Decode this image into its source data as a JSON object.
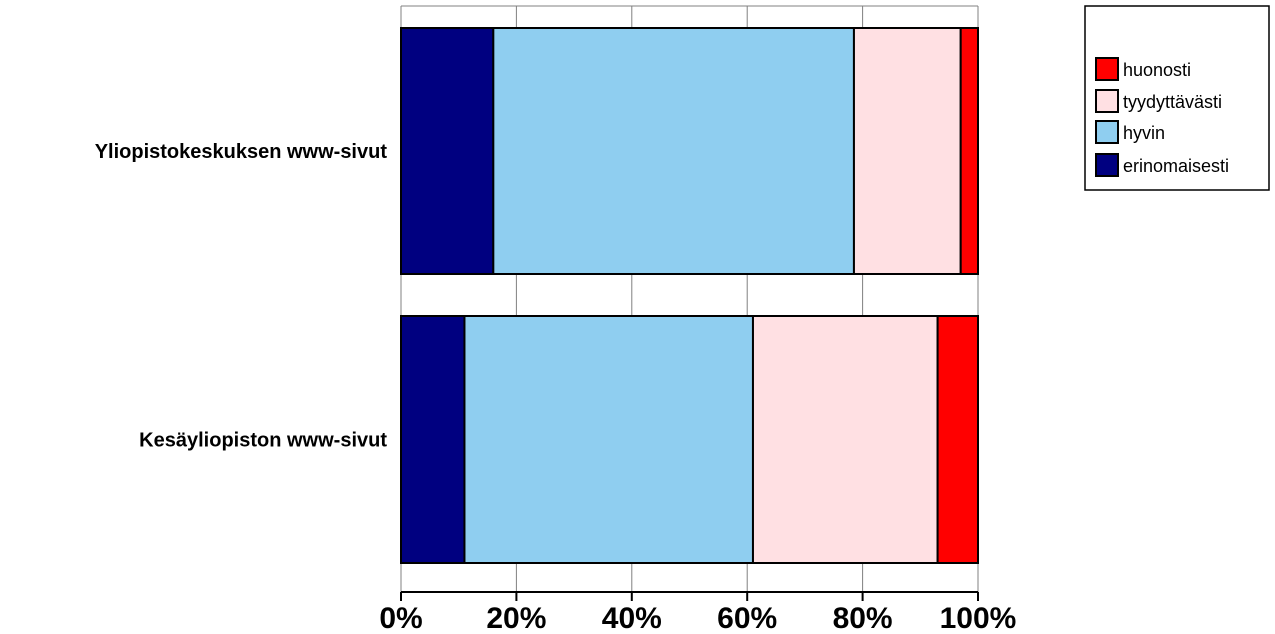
{
  "chart_data": {
    "type": "bar",
    "orientation": "horizontal",
    "stacked": "percent",
    "categories": [
      "Yliopistokeskuksen www-sivut",
      "Kesäyliopiston www-sivut"
    ],
    "series": [
      {
        "name": "erinomaisesti",
        "color": "#000080",
        "values": [
          16,
          11
        ]
      },
      {
        "name": "hyvin",
        "color": "#8FCEF0",
        "values": [
          62.5,
          50
        ]
      },
      {
        "name": "tyydyttävästi",
        "color": "#FFE0E3",
        "values": [
          18.5,
          32
        ]
      },
      {
        "name": "huonosti",
        "color": "#FF0000",
        "values": [
          3,
          7
        ]
      }
    ],
    "xlim": [
      0,
      100
    ],
    "xticks": [
      "0%",
      "20%",
      "40%",
      "60%",
      "80%",
      "100%"
    ],
    "grid": true,
    "legend_position": "top-right",
    "legend_order": [
      "huonosti",
      "tyydyttävästi",
      "hyvin",
      "erinomaisesti"
    ]
  }
}
